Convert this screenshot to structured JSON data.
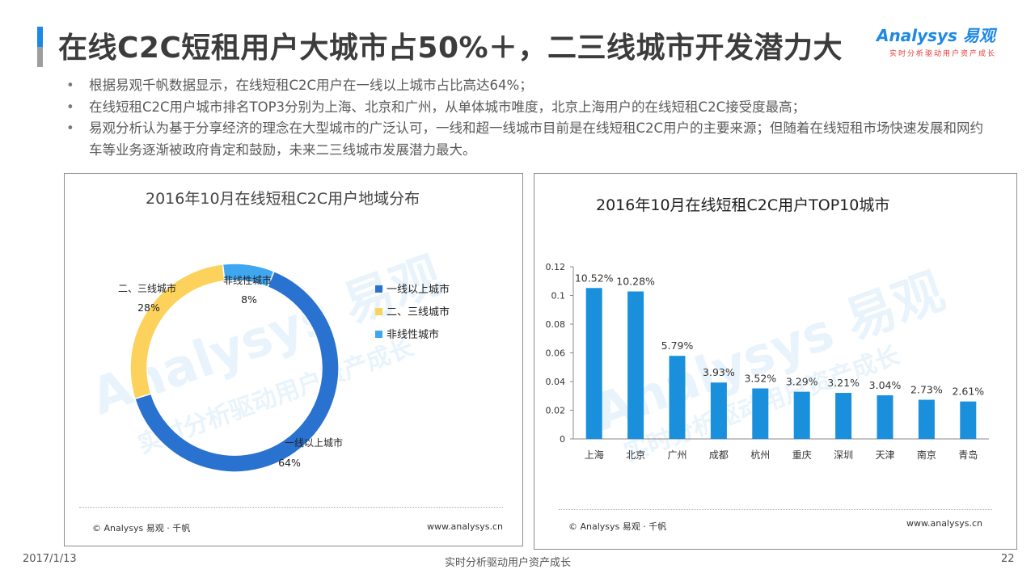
{
  "header": {
    "title": "在线C2C短租用户大城市占50%＋，二三线城市开发潜力大",
    "logo_text": "Analysys 易观",
    "logo_slogan": "实时分析驱动用户资产成长"
  },
  "bullets": [
    "根据易观千帆数据显示，在线短租C2C用户在一线以上城市占比高达64%；",
    "在线短租C2C用户城市排名TOP3分别为上海、北京和广州，从单体城市唯度，北京上海用户的在线短租C2C接受度最高；",
    "易观分析认为基于分享经济的理念在大型城市的广泛认可，一线和超一线城市目前是在线短租C2C用户的主要来源；但随着在线短租市场快速发展和网约车等业务逐渐被政府肯定和鼓励，未来二三线城市发展潜力最大。"
  ],
  "left_panel": {
    "source": "© Analysys 易观 · 千帆",
    "website": "www.analysys.cn"
  },
  "right_panel": {
    "source": "© Analysys 易观 · 千帆",
    "website": "www.analysys.cn"
  },
  "watermark": {
    "brand": "Analysys 易观",
    "slogan": "实时分析驱动用户资产成长"
  },
  "footer": {
    "date": "2017/1/13",
    "slogan": "实时分析驱动用户资产成长",
    "page": "22"
  },
  "colors": {
    "blue_dark": "#2a72d0",
    "yellow": "#fcd25d",
    "blue_light": "#3fa6f0",
    "bar": "#1a90dc"
  },
  "chart_data": [
    {
      "type": "pie",
      "donut": true,
      "title": "2016年10月在线短租C2C用户地域分布",
      "legend_position": "right",
      "series": [
        {
          "name": "一线以上城市",
          "value": 64,
          "label": "64%",
          "color": "#2a72d0"
        },
        {
          "name": "二、三线城市",
          "value": 28,
          "label": "28%",
          "color": "#fcd25d"
        },
        {
          "name": "非线性城市",
          "value": 8,
          "label": "8%",
          "color": "#3fa6f0"
        }
      ]
    },
    {
      "type": "bar",
      "title": "2016年10月在线短租C2C用户TOP10城市",
      "categories": [
        "上海",
        "北京",
        "广州",
        "成都",
        "杭州",
        "重庆",
        "深圳",
        "天津",
        "南京",
        "青岛"
      ],
      "values": [
        0.1052,
        0.1028,
        0.0579,
        0.0393,
        0.0352,
        0.0329,
        0.0321,
        0.0304,
        0.0273,
        0.0261
      ],
      "data_labels": [
        "10.52%",
        "10.28%",
        "5.79%",
        "3.93%",
        "3.52%",
        "3.29%",
        "3.21%",
        "3.04%",
        "2.73%",
        "2.61%"
      ],
      "ylim": [
        0,
        0.12
      ],
      "yticks": [
        "0",
        "0.02",
        "0.04",
        "0.06",
        "0.08",
        "0.1",
        "0.12"
      ],
      "grid": false,
      "color": "#1a90dc"
    }
  ]
}
